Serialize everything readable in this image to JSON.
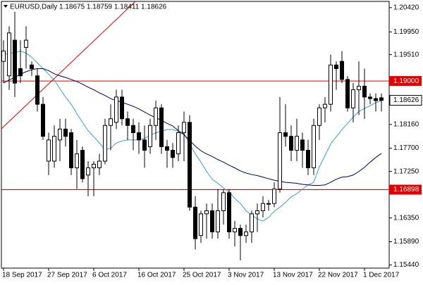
{
  "chart_data": {
    "type": "candlestick",
    "title": "EURUSD,Daily  1.18675 1.18759 1.18411 1.18626",
    "categories": [
      "18 Sep 2017",
      null,
      null,
      null,
      null,
      null,
      null,
      null,
      "27 Sep 2017",
      null,
      null,
      null,
      null,
      null,
      null,
      null,
      "6 Oct 2017",
      null,
      null,
      null,
      null,
      null,
      null,
      null,
      "16 Oct 2017",
      null,
      null,
      null,
      null,
      null,
      null,
      null,
      "25 Oct 2017",
      null,
      null,
      null,
      null,
      null,
      null,
      null,
      "3 Nov 2017",
      null,
      null,
      null,
      null,
      null,
      null,
      null,
      "13 Nov 2017",
      null,
      null,
      null,
      null,
      null,
      null,
      null,
      "22 Nov 2017",
      null,
      null,
      null,
      null,
      null,
      null,
      null,
      "1 Dec 2017",
      null,
      null,
      null
    ],
    "open": [
      1.1938,
      1.191,
      1.1979,
      1.1924,
      1.1965,
      1.1931,
      1.191,
      1.1855,
      1.1745,
      1.1745,
      1.1786,
      1.1807,
      1.18,
      1.1732,
      1.1766,
      1.1718,
      1.1732,
      1.1732,
      1.1745,
      1.1814,
      1.182,
      1.1869,
      1.1827,
      1.1814,
      1.18,
      1.1786,
      1.1773,
      1.1814,
      1.1848,
      1.1773,
      1.1766,
      1.1759,
      1.18,
      1.182,
      1.1656,
      1.1601,
      1.1643,
      1.1649,
      1.1608,
      1.1649,
      1.1684,
      1.1608,
      1.1615,
      1.1601,
      1.1608,
      1.1643,
      1.1649,
      1.1663,
      1.1663,
      1.1691,
      1.18,
      1.1793,
      1.1766,
      1.1786,
      1.1766,
      1.1732,
      1.1814,
      1.1848,
      1.1855,
      1.1931,
      1.1938,
      1.1903,
      1.1848,
      1.1883,
      1.189,
      1.1869,
      1.1866,
      1.18675
    ],
    "high": [
      1.1979,
      1.2006,
      1.2034,
      1.1979,
      1.2006,
      1.1938,
      1.1924,
      1.1869,
      1.18,
      1.1814,
      1.1827,
      1.1827,
      1.1807,
      1.1786,
      1.1773,
      1.1745,
      1.1745,
      1.1759,
      1.1827,
      1.1855,
      1.1883,
      1.1883,
      1.1841,
      1.1827,
      1.182,
      1.1814,
      1.1827,
      1.1862,
      1.1855,
      1.1786,
      1.178,
      1.1814,
      1.1841,
      1.1834,
      1.1677,
      1.1649,
      1.1663,
      1.1663,
      1.1691,
      1.1691,
      1.1691,
      1.1629,
      1.1622,
      1.1622,
      1.1649,
      1.1663,
      1.1677,
      1.167,
      1.1704,
      1.1869,
      1.1855,
      1.1814,
      1.1827,
      1.18,
      1.1786,
      1.1827,
      1.1855,
      1.1869,
      1.1951,
      1.1938,
      1.1958,
      1.191,
      1.1896,
      1.1938,
      1.1924,
      1.1876,
      1.1876,
      1.18759
    ],
    "low": [
      1.1896,
      1.1883,
      1.1869,
      1.1896,
      1.1924,
      1.191,
      1.1841,
      1.1786,
      1.1718,
      1.1732,
      1.1745,
      1.1773,
      1.1718,
      1.1691,
      1.1704,
      1.1677,
      1.1677,
      1.1718,
      1.1739,
      1.1766,
      1.1807,
      1.1814,
      1.1786,
      1.1766,
      1.1759,
      1.1732,
      1.1759,
      1.1786,
      1.1759,
      1.1732,
      1.1732,
      1.1745,
      1.1745,
      1.1649,
      1.1574,
      1.1587,
      1.1595,
      1.1595,
      1.1595,
      1.1622,
      1.1595,
      1.158,
      1.1553,
      1.1587,
      1.1587,
      1.1608,
      1.1636,
      1.1649,
      1.1656,
      1.1684,
      1.1773,
      1.1745,
      1.1745,
      1.1732,
      1.1718,
      1.1718,
      1.1786,
      1.182,
      1.1841,
      1.1883,
      1.1896,
      1.1841,
      1.182,
      1.1834,
      1.1827,
      1.1855,
      1.1841,
      1.18411
    ],
    "close": [
      1.1958,
      1.1993,
      1.1896,
      1.191,
      1.1979,
      1.1924,
      1.1855,
      1.1793,
      1.1786,
      1.1793,
      1.1807,
      1.1793,
      1.1732,
      1.1759,
      1.1711,
      1.1732,
      1.1739,
      1.1745,
      1.1814,
      1.1827,
      1.1869,
      1.1827,
      1.1814,
      1.18,
      1.1786,
      1.1766,
      1.1814,
      1.1848,
      1.1773,
      1.1766,
      1.1752,
      1.18,
      1.182,
      1.1656,
      1.1595,
      1.1643,
      1.1649,
      1.1608,
      1.1649,
      1.1684,
      1.1608,
      1.1615,
      1.1601,
      1.1608,
      1.1643,
      1.1649,
      1.1663,
      1.1663,
      1.1691,
      1.18,
      1.1793,
      1.1766,
      1.1793,
      1.1766,
      1.1732,
      1.1814,
      1.1848,
      1.1855,
      1.1931,
      1.1924,
      1.1903,
      1.1848,
      1.1883,
      1.189,
      1.1869,
      1.1866,
      1.1862,
      1.18626
    ],
    "bull_color": "#ffffff",
    "bear_color": "#000000",
    "lines": [
      {
        "color": "#3a9fc0",
        "values": [
          1.1951,
          1.1954,
          1.1955,
          1.1958,
          1.1954,
          1.1946,
          1.1935,
          1.1924,
          1.1913,
          1.1902,
          1.1885,
          1.1869,
          1.1855,
          1.1837,
          1.182,
          1.1804,
          1.1792,
          1.178,
          1.1767,
          1.177,
          1.178,
          1.1784,
          1.1786,
          1.1786,
          1.1786,
          1.1789,
          1.1795,
          1.18,
          1.1803,
          1.1806,
          1.1806,
          1.1803,
          1.1798,
          1.1778,
          1.1759,
          1.1743,
          1.1725,
          1.171,
          1.1702,
          1.1693,
          1.1685,
          1.1673,
          1.1663,
          1.1649,
          1.1641,
          1.1633,
          1.1629,
          1.1636,
          1.1648,
          1.1656,
          1.1665,
          1.1676,
          1.1682,
          1.1691,
          1.1699,
          1.1704,
          1.1734,
          1.1756,
          1.1778,
          1.1792,
          1.1806,
          1.1818,
          1.183,
          1.1841,
          1.1847,
          1.1852,
          1.1858,
          1.1862
        ]
      },
      {
        "color": "#00005a",
        "values": [
          1.1896,
          1.1902,
          1.1907,
          1.1913,
          1.1918,
          1.1922,
          1.1924,
          1.1924,
          1.192,
          1.1914,
          1.191,
          1.1907,
          1.1903,
          1.1899,
          1.1894,
          1.1888,
          1.1883,
          1.1877,
          1.1872,
          1.1866,
          1.1862,
          1.1859,
          1.1855,
          1.1851,
          1.1846,
          1.184,
          1.1834,
          1.1829,
          1.1824,
          1.1818,
          1.1813,
          1.1804,
          1.1796,
          1.1785,
          1.1774,
          1.1765,
          1.1759,
          1.1754,
          1.1748,
          1.1743,
          1.1737,
          1.1732,
          1.1726,
          1.1722,
          1.1719,
          1.1717,
          1.1714,
          1.1711,
          1.1708,
          1.1706,
          1.1704,
          1.1703,
          1.1702,
          1.17,
          1.1699,
          1.1698,
          1.1698,
          1.1699,
          1.1704,
          1.171,
          1.1714,
          1.1715,
          1.1718,
          1.1725,
          1.1733,
          1.1743,
          1.1752,
          1.176
        ]
      }
    ],
    "hlines": [
      {
        "value": 1.19,
        "label": "1.19000",
        "color": "#e00000"
      },
      {
        "value": 1.16898,
        "label": "1.16898",
        "color": "#e00000"
      }
    ],
    "current_price": {
      "value": 1.18626,
      "label": "1.18626"
    },
    "ylim": [
      1.1538,
      1.2054
    ],
    "yticks": [
      {
        "value": 1.2042,
        "label": "1.20420"
      },
      {
        "value": 1.1995,
        "label": "1.19950"
      },
      {
        "value": 1.1951,
        "label": "1.19510"
      },
      {
        "value": 1.1816,
        "label": "1.18160"
      },
      {
        "value": 1.177,
        "label": "1.17700"
      },
      {
        "value": 1.1725,
        "label": "1.17250"
      },
      {
        "value": 1.1635,
        "label": "1.16350"
      },
      {
        "value": 1.1589,
        "label": "1.15890"
      },
      {
        "value": 1.1544,
        "label": "1.15440"
      }
    ],
    "grid": false
  }
}
